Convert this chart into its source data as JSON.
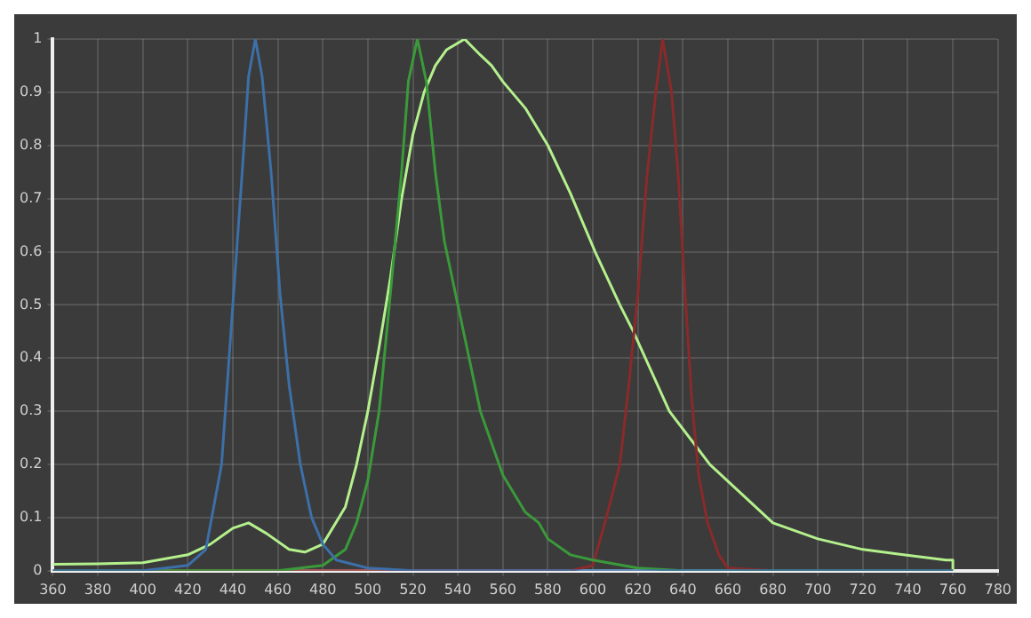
{
  "chart_data": {
    "type": "line",
    "xlim": [
      360,
      780
    ],
    "ylim": [
      0,
      1
    ],
    "xticks": [
      360,
      380,
      400,
      420,
      440,
      460,
      480,
      500,
      520,
      540,
      560,
      580,
      600,
      620,
      640,
      660,
      680,
      700,
      720,
      740,
      760,
      780
    ],
    "yticks": [
      0,
      0.1,
      0.2,
      0.3,
      0.4,
      0.5,
      0.6,
      0.7,
      0.8,
      0.9,
      1
    ],
    "grid": true,
    "legend": false,
    "marker": "none",
    "line_style": "solid",
    "series": [
      {
        "color": "#3d6fa8",
        "x": [
          360,
          400,
          420,
          428,
          435,
          440,
          444,
          447,
          450,
          453,
          457,
          461,
          465,
          470,
          475,
          480,
          486,
          500,
          520,
          760
        ],
        "values": [
          0,
          0,
          0.01,
          0.04,
          0.2,
          0.5,
          0.74,
          0.93,
          1,
          0.93,
          0.75,
          0.52,
          0.35,
          0.2,
          0.1,
          0.05,
          0.02,
          0.005,
          0,
          0
        ]
      },
      {
        "color": "#3a9a3a",
        "x": [
          360,
          460,
          480,
          490,
          495,
          500,
          505,
          510,
          515,
          518,
          522,
          526,
          530,
          534,
          539,
          545,
          550,
          560,
          570,
          576,
          580,
          590,
          600,
          620,
          640,
          760
        ],
        "values": [
          0,
          0,
          0.01,
          0.04,
          0.09,
          0.17,
          0.3,
          0.52,
          0.75,
          0.92,
          1,
          0.92,
          0.75,
          0.62,
          0.52,
          0.4,
          0.3,
          0.18,
          0.11,
          0.09,
          0.06,
          0.03,
          0.02,
          0.005,
          0,
          0
        ]
      },
      {
        "color": "#8a2a2a",
        "x": [
          360,
          590,
          600,
          606,
          612,
          616,
          620,
          624,
          628,
          631,
          635,
          638,
          641,
          644,
          647,
          651,
          656,
          660,
          680,
          760
        ],
        "values": [
          0,
          0,
          0.01,
          0.1,
          0.2,
          0.35,
          0.52,
          0.74,
          0.9,
          1,
          0.9,
          0.74,
          0.52,
          0.32,
          0.18,
          0.09,
          0.03,
          0.005,
          0,
          0
        ]
      },
      {
        "color": "#b4f08c",
        "x": [
          360,
          380,
          400,
          420,
          430,
          440,
          447,
          455,
          465,
          472,
          480,
          490,
          495,
          500,
          505,
          510,
          515,
          520,
          525,
          530,
          535,
          543,
          550,
          555,
          560,
          570,
          580,
          590,
          601,
          612,
          618,
          634,
          652,
          680,
          700,
          720,
          738,
          757,
          760,
          760
        ],
        "values": [
          0.012,
          0.013,
          0.015,
          0.03,
          0.05,
          0.08,
          0.09,
          0.07,
          0.04,
          0.035,
          0.05,
          0.12,
          0.2,
          0.3,
          0.42,
          0.55,
          0.7,
          0.82,
          0.9,
          0.95,
          0.98,
          1,
          0.97,
          0.95,
          0.92,
          0.87,
          0.8,
          0.71,
          0.6,
          0.5,
          0.45,
          0.3,
          0.2,
          0.09,
          0.06,
          0.04,
          0.03,
          0.02,
          0.02,
          0
        ]
      }
    ]
  }
}
